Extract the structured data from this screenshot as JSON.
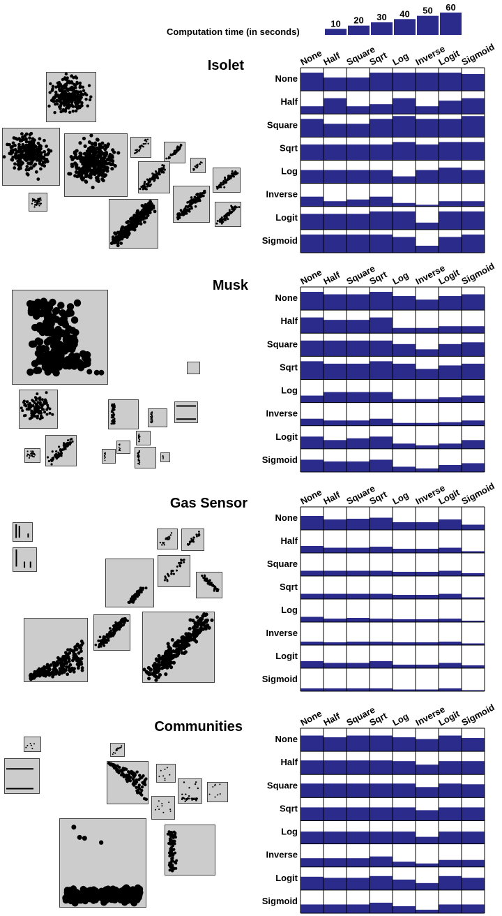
{
  "legend": {
    "title": "Computation time (in seconds)",
    "values": [
      10,
      20,
      30,
      40,
      50,
      60
    ],
    "max": 60
  },
  "colors": {
    "bar": "#2b2b8c",
    "panel": "#cccccc",
    "cell_border": "#000000",
    "grid_line": "#000000"
  },
  "transforms": [
    "None",
    "Half",
    "Square",
    "Sqrt",
    "Log",
    "Inverse",
    "Logit",
    "Sigmoid"
  ],
  "chart_data": [
    {
      "type": "heatmap",
      "title": "Isolet",
      "row_labels": [
        "None",
        "Half",
        "Square",
        "Sqrt",
        "Log",
        "Inverse",
        "Logit",
        "Sigmoid"
      ],
      "col_labels": [
        "None",
        "Half",
        "Square",
        "Sqrt",
        "Log",
        "Inverse",
        "Logit",
        "Sigmoid"
      ],
      "cell_value_range": [
        0,
        60
      ],
      "values": [
        [
          52,
          38,
          38,
          52,
          52,
          52,
          52,
          48
        ],
        [
          22,
          45,
          22,
          28,
          45,
          22,
          38,
          45
        ],
        [
          52,
          38,
          38,
          52,
          60,
          52,
          52,
          60
        ],
        [
          45,
          45,
          45,
          45,
          52,
          45,
          52,
          52
        ],
        [
          38,
          38,
          38,
          38,
          20,
          38,
          45,
          38
        ],
        [
          28,
          15,
          20,
          28,
          10,
          5,
          15,
          15
        ],
        [
          45,
          45,
          45,
          52,
          52,
          20,
          52,
          52
        ],
        [
          52,
          52,
          52,
          52,
          45,
          20,
          45,
          52
        ]
      ]
    },
    {
      "type": "heatmap",
      "title": "Musk",
      "row_labels": [
        "None",
        "Half",
        "Square",
        "Sqrt",
        "Log",
        "Inverse",
        "Logit",
        "Sigmoid"
      ],
      "col_labels": [
        "None",
        "Half",
        "Square",
        "Sqrt",
        "Log",
        "Inverse",
        "Logit",
        "Sigmoid"
      ],
      "cell_value_range": [
        0,
        60
      ],
      "values": [
        [
          52,
          45,
          45,
          52,
          40,
          30,
          40,
          45
        ],
        [
          45,
          38,
          38,
          45,
          15,
          15,
          20,
          20
        ],
        [
          45,
          45,
          45,
          45,
          35,
          20,
          35,
          40
        ],
        [
          52,
          45,
          45,
          52,
          45,
          30,
          40,
          45
        ],
        [
          20,
          30,
          30,
          30,
          10,
          10,
          15,
          20
        ],
        [
          20,
          15,
          15,
          20,
          8,
          8,
          10,
          15
        ],
        [
          35,
          25,
          30,
          35,
          15,
          10,
          15,
          25
        ],
        [
          35,
          30,
          30,
          35,
          15,
          10,
          20,
          25
        ]
      ]
    },
    {
      "type": "heatmap",
      "title": "Gas Sensor",
      "row_labels": [
        "None",
        "Half",
        "Square",
        "Sqrt",
        "Log",
        "Inverse",
        "Logit",
        "Sigmoid"
      ],
      "col_labels": [
        "None",
        "Half",
        "Square",
        "Sqrt",
        "Log",
        "Inverse",
        "Logit",
        "Sigmoid"
      ],
      "cell_value_range": [
        0,
        60
      ],
      "values": [
        [
          40,
          30,
          32,
          35,
          22,
          22,
          30,
          15
        ],
        [
          20,
          15,
          15,
          18,
          12,
          12,
          15,
          5
        ],
        [
          15,
          15,
          15,
          15,
          12,
          12,
          15,
          8
        ],
        [
          15,
          15,
          15,
          15,
          12,
          12,
          15,
          5
        ],
        [
          15,
          10,
          12,
          10,
          8,
          8,
          10,
          4
        ],
        [
          10,
          8,
          10,
          10,
          8,
          8,
          10,
          5
        ],
        [
          20,
          15,
          15,
          20,
          10,
          10,
          15,
          8
        ],
        [
          8,
          8,
          8,
          8,
          5,
          5,
          8,
          3
        ]
      ]
    },
    {
      "type": "heatmap",
      "title": "Communities",
      "row_labels": [
        "None",
        "Half",
        "Square",
        "Sqrt",
        "Log",
        "Inverse",
        "Logit",
        "Sigmoid"
      ],
      "col_labels": [
        "None",
        "Half",
        "Square",
        "Sqrt",
        "Log",
        "Inverse",
        "Logit",
        "Sigmoid"
      ],
      "cell_value_range": [
        0,
        60
      ],
      "values": [
        [
          45,
          40,
          45,
          45,
          40,
          35,
          45,
          38
        ],
        [
          40,
          40,
          40,
          40,
          38,
          28,
          38,
          38
        ],
        [
          40,
          40,
          40,
          40,
          40,
          30,
          40,
          38
        ],
        [
          38,
          38,
          38,
          38,
          38,
          30,
          38,
          38
        ],
        [
          35,
          35,
          35,
          35,
          35,
          20,
          35,
          35
        ],
        [
          25,
          25,
          25,
          30,
          15,
          10,
          20,
          20
        ],
        [
          38,
          35,
          35,
          40,
          30,
          20,
          40,
          35
        ],
        [
          25,
          25,
          25,
          30,
          20,
          10,
          25,
          25
        ]
      ]
    }
  ]
}
